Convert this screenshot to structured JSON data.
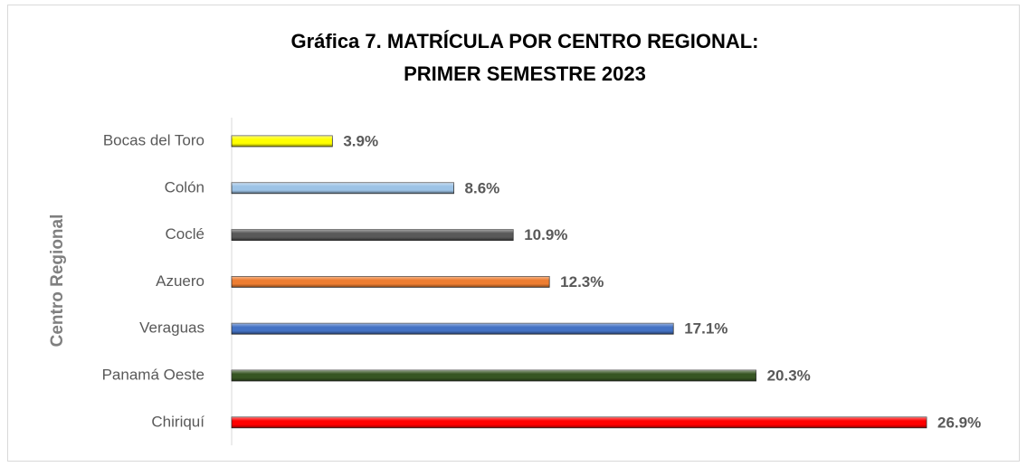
{
  "chart_data": {
    "type": "hbar",
    "title": [
      "Gráfica 7. MATRÍCULA POR CENTRO REGIONAL:",
      "PRIMER SEMESTRE 2023"
    ],
    "y_label": "Centro Regional",
    "categories": [
      "Bocas del Toro",
      "Colón",
      "Coclé",
      "Azuero",
      "Veraguas",
      "Panamá Oeste",
      "Chiriquí"
    ],
    "values": [
      3.9,
      8.6,
      10.9,
      12.3,
      17.1,
      20.3,
      26.9
    ],
    "value_labels": [
      "3.9%",
      "8.6%",
      "10.9%",
      "12.3%",
      "17.1%",
      "20.3%",
      "26.9%"
    ],
    "colors": [
      "#ffff00",
      "#9dc3e6",
      "#595959",
      "#ed7d31",
      "#4472c4",
      "#375623",
      "#ff0000"
    ]
  }
}
